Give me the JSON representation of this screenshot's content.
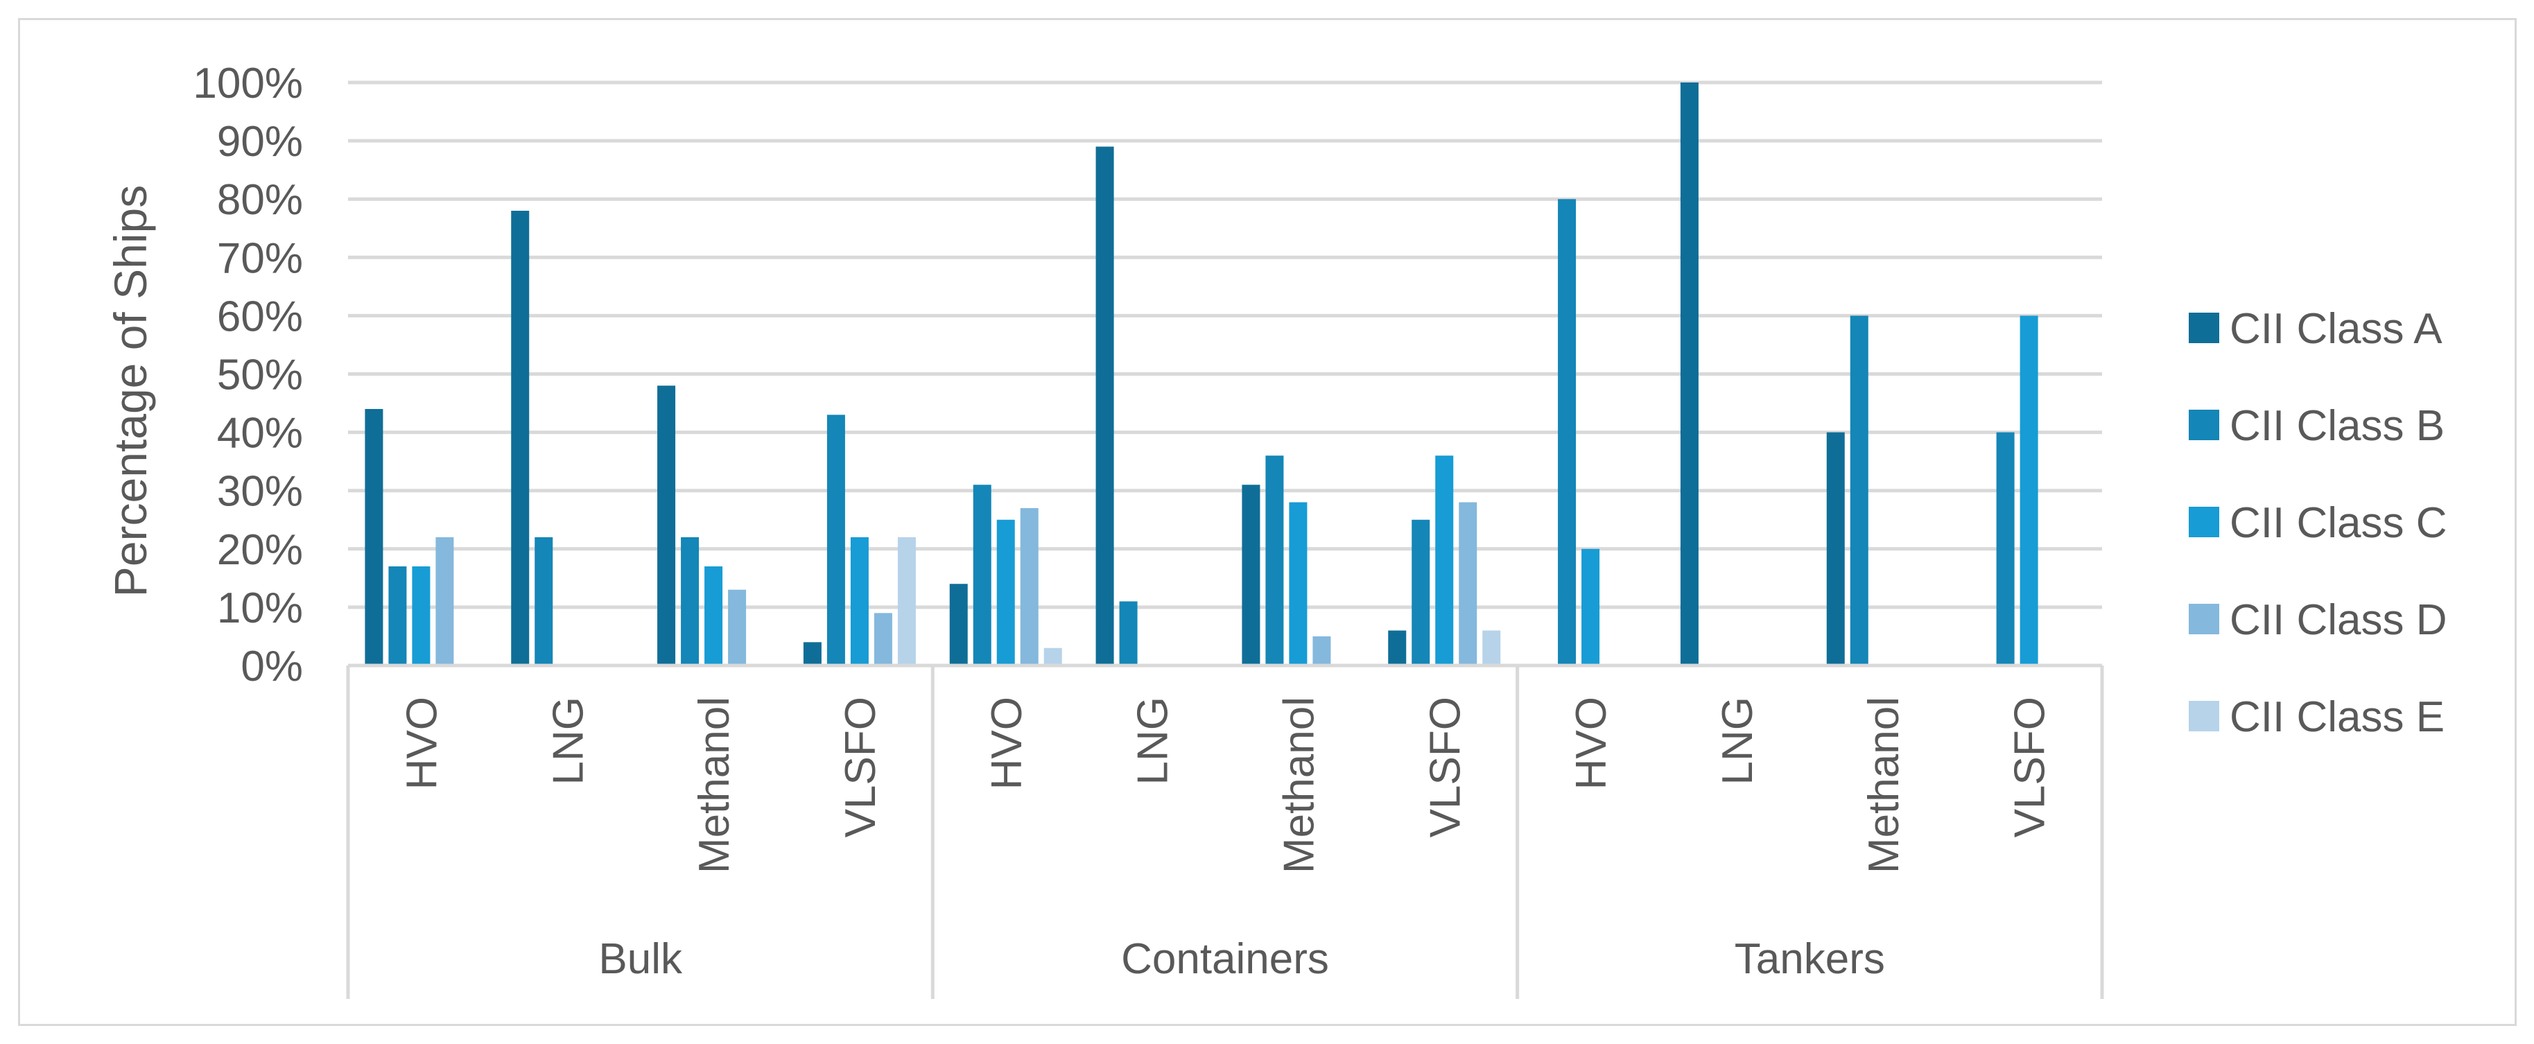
{
  "chart_data": {
    "type": "bar",
    "ylabel": "Percentage of Ships",
    "xlabel": "",
    "title": "",
    "ylim": [
      0,
      100
    ],
    "y_ticks": [
      "0%",
      "10%",
      "20%",
      "30%",
      "40%",
      "50%",
      "60%",
      "70%",
      "80%",
      "90%",
      "100%"
    ],
    "groups": [
      {
        "name": "Bulk",
        "categories": [
          "HVO",
          "LNG",
          "Methanol",
          "VLSFO"
        ]
      },
      {
        "name": "Containers",
        "categories": [
          "HVO",
          "LNG",
          "Methanol",
          "VLSFO"
        ]
      },
      {
        "name": "Tankers",
        "categories": [
          "HVO",
          "LNG",
          "Methanol",
          "VLSFO"
        ]
      }
    ],
    "series": [
      {
        "name": "CII Class A",
        "color": "#0f6e97",
        "values": [
          44,
          78,
          48,
          4,
          14,
          89,
          31,
          6,
          0,
          100,
          40,
          0
        ]
      },
      {
        "name": "CII Class B",
        "color": "#1486b7",
        "values": [
          17,
          22,
          22,
          43,
          31,
          11,
          36,
          25,
          80,
          0,
          60,
          40
        ]
      },
      {
        "name": "CII Class C",
        "color": "#179cd5",
        "values": [
          17,
          0,
          17,
          22,
          25,
          0,
          28,
          36,
          20,
          0,
          0,
          60
        ]
      },
      {
        "name": "CII Class D",
        "color": "#84b8dd",
        "values": [
          22,
          0,
          13,
          9,
          27,
          0,
          5,
          28,
          0,
          0,
          0,
          0
        ]
      },
      {
        "name": "CII Class E",
        "color": "#b6d3ea",
        "values": [
          0,
          0,
          0,
          22,
          3,
          0,
          0,
          6,
          0,
          0,
          0,
          0
        ]
      }
    ],
    "legend_position": "right",
    "grid": true
  }
}
